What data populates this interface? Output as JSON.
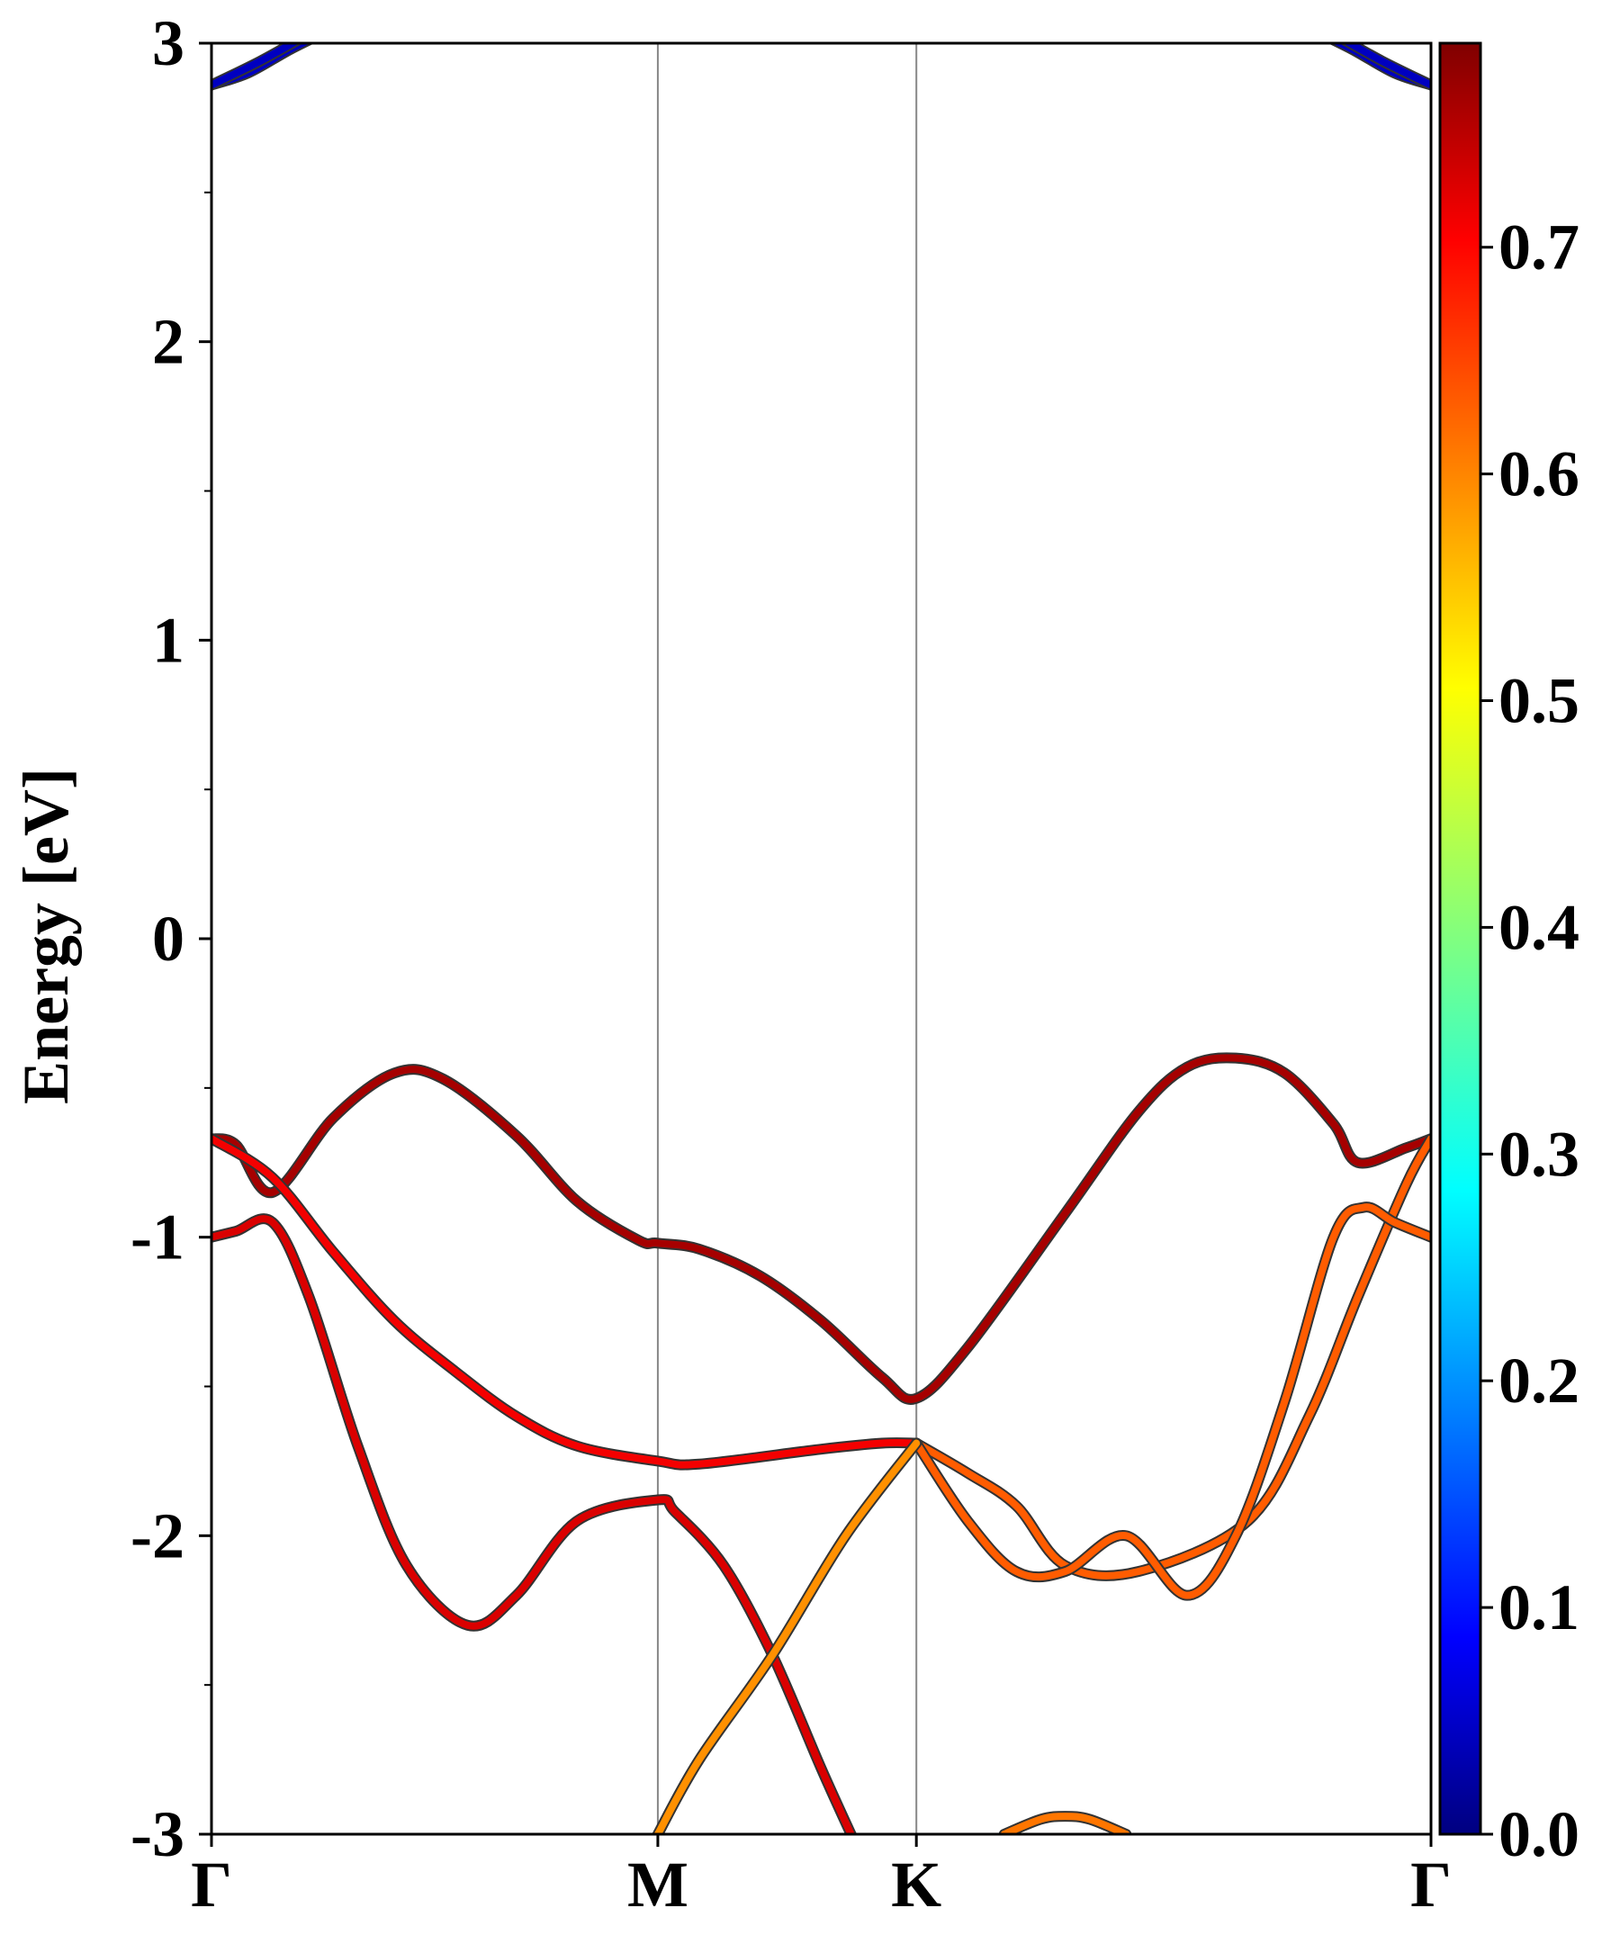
{
  "chart_data": {
    "type": "line",
    "title": "",
    "xlabel": "",
    "ylabel": "Energy [eV]",
    "ylim": [
      -3,
      3
    ],
    "yticks": [
      "3",
      "2",
      "1",
      "0",
      "-1",
      "-2",
      "-3"
    ],
    "ytick_values": [
      3,
      2,
      1,
      0,
      -1,
      -2,
      -3
    ],
    "kpath": [
      {
        "label": "Γ",
        "x": 0.0
      },
      {
        "label": "M",
        "x": 0.366
      },
      {
        "label": "K",
        "x": 0.578
      },
      {
        "label": "Γ",
        "x": 1.0
      }
    ],
    "colorbar": {
      "colormap": "jet",
      "min": 0.0,
      "max": 0.79,
      "ticks": [
        "0.0",
        "0.1",
        "0.2",
        "0.3",
        "0.4",
        "0.5",
        "0.6",
        "0.7"
      ],
      "tick_values": [
        0.0,
        0.1,
        0.2,
        0.3,
        0.4,
        0.5,
        0.6,
        0.7
      ]
    },
    "grid": false,
    "series": [
      {
        "weight": 0.05,
        "points": [
          [
            0,
            2.86
          ],
          [
            0.03,
            2.9
          ],
          [
            0.065,
            2.98
          ],
          [
            0.1,
            3.05
          ]
        ]
      },
      {
        "weight": 0.05,
        "points": [
          [
            0,
            2.86
          ],
          [
            0.04,
            2.94
          ],
          [
            0.075,
            3.02
          ]
        ]
      },
      {
        "weight": 0.05,
        "points": [
          [
            1,
            2.86
          ],
          [
            0.97,
            2.9
          ],
          [
            0.935,
            2.98
          ],
          [
            0.9,
            3.05
          ]
        ]
      },
      {
        "weight": 0.05,
        "points": [
          [
            1,
            2.86
          ],
          [
            0.96,
            2.94
          ],
          [
            0.925,
            3.02
          ]
        ]
      },
      {
        "weight": 0.76,
        "points": [
          [
            0,
            -0.67
          ],
          [
            0.02,
            -0.69
          ],
          [
            0.05,
            -0.85
          ],
          [
            0.1,
            -0.6
          ],
          [
            0.15,
            -0.45
          ],
          [
            0.19,
            -0.47
          ],
          [
            0.25,
            -0.66
          ],
          [
            0.3,
            -0.88
          ],
          [
            0.35,
            -1.01
          ],
          [
            0.366,
            -1.02
          ],
          [
            0.4,
            -1.04
          ],
          [
            0.45,
            -1.13
          ],
          [
            0.5,
            -1.28
          ],
          [
            0.55,
            -1.47
          ],
          [
            0.578,
            -1.54
          ],
          [
            0.62,
            -1.37
          ],
          [
            0.7,
            -0.92
          ],
          [
            0.76,
            -0.58
          ],
          [
            0.8,
            -0.43
          ],
          [
            0.84,
            -0.4
          ],
          [
            0.88,
            -0.45
          ],
          [
            0.92,
            -0.62
          ],
          [
            0.94,
            -0.75
          ],
          [
            0.98,
            -0.7
          ],
          [
            1,
            -0.67
          ]
        ]
      },
      {
        "weight": 0.7,
        "points": [
          [
            0,
            -0.67
          ],
          [
            0.05,
            -0.8
          ],
          [
            0.1,
            -1.05
          ],
          [
            0.15,
            -1.28
          ],
          [
            0.2,
            -1.45
          ],
          [
            0.25,
            -1.6
          ],
          [
            0.3,
            -1.7
          ],
          [
            0.366,
            -1.75
          ],
          [
            0.4,
            -1.76
          ],
          [
            0.5,
            -1.71
          ],
          [
            0.55,
            -1.69
          ],
          [
            0.578,
            -1.69
          ]
        ]
      },
      {
        "weight": 0.72,
        "points": [
          [
            0,
            -1.0
          ],
          [
            0.02,
            -0.98
          ],
          [
            0.05,
            -0.95
          ],
          [
            0.08,
            -1.2
          ],
          [
            0.12,
            -1.7
          ],
          [
            0.16,
            -2.1
          ],
          [
            0.21,
            -2.3
          ],
          [
            0.25,
            -2.2
          ],
          [
            0.3,
            -1.95
          ],
          [
            0.366,
            -1.88
          ],
          [
            0.38,
            -1.92
          ],
          [
            0.42,
            -2.1
          ],
          [
            0.46,
            -2.4
          ],
          [
            0.5,
            -2.78
          ],
          [
            0.53,
            -3.05
          ]
        ]
      },
      {
        "weight": 0.62,
        "points": [
          [
            0.578,
            -1.69
          ],
          [
            0.62,
            -1.79
          ],
          [
            0.66,
            -1.9
          ],
          [
            0.7,
            -2.1
          ],
          [
            0.76,
            -2.12
          ],
          [
            0.85,
            -1.95
          ],
          [
            0.9,
            -1.6
          ],
          [
            0.94,
            -1.2
          ],
          [
            0.98,
            -0.82
          ],
          [
            1,
            -0.67
          ]
        ]
      },
      {
        "weight": 0.62,
        "points": [
          [
            0.578,
            -1.69
          ],
          [
            0.62,
            -1.95
          ],
          [
            0.66,
            -2.12
          ],
          [
            0.7,
            -2.12
          ],
          [
            0.75,
            -2.0
          ],
          [
            0.8,
            -2.2
          ],
          [
            0.84,
            -2.0
          ],
          [
            0.88,
            -1.55
          ],
          [
            0.92,
            -1.0
          ],
          [
            0.945,
            -0.9
          ],
          [
            0.97,
            -0.95
          ],
          [
            1,
            -1.0
          ]
        ]
      },
      {
        "weight": 0.58,
        "points": [
          [
            0.366,
            -3.0
          ],
          [
            0.4,
            -2.75
          ],
          [
            0.46,
            -2.4
          ],
          [
            0.52,
            -2.0
          ],
          [
            0.578,
            -1.69
          ]
        ]
      },
      {
        "weight": 0.6,
        "points": [
          [
            0.65,
            -3.0
          ],
          [
            0.68,
            -2.95
          ],
          [
            0.7,
            -2.94
          ],
          [
            0.72,
            -2.95
          ],
          [
            0.75,
            -3.0
          ]
        ]
      }
    ]
  }
}
